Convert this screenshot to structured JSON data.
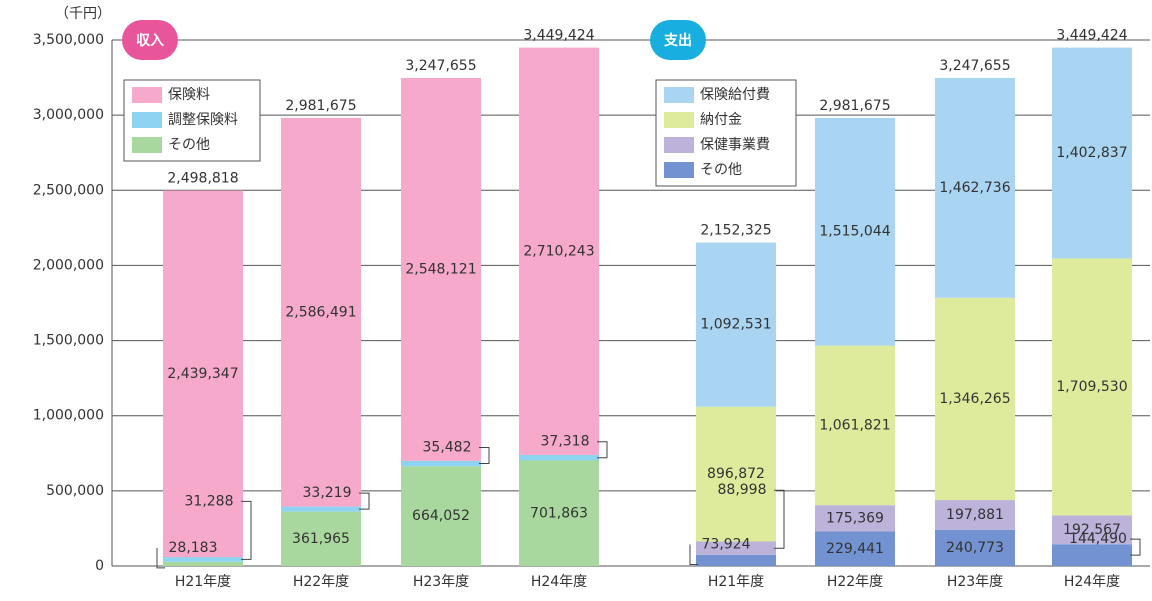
{
  "chart_data": {
    "type": "stacked-bar",
    "y_label": "（千円）",
    "ylim": [
      0,
      3500000
    ],
    "yticks": [
      0,
      {
        "value": 500000,
        "label": "500,000"
      },
      {
        "value": 1000000,
        "label": "1,000,000"
      },
      {
        "value": 1500000,
        "label": "1,500,000"
      },
      {
        "value": 2000000,
        "label": "2,000,000"
      },
      {
        "value": 2500000,
        "label": "2,500,000"
      },
      {
        "value": 3000000,
        "label": "3,000,000"
      },
      {
        "value": 3500000,
        "label": "3,500,000"
      }
    ],
    "grid": true,
    "groups": [
      {
        "title": "収入",
        "title_color": "#e8559a",
        "categories": [
          "H21年度",
          "H22年度",
          "H23年度",
          "H24年度"
        ],
        "totals": [
          2498818,
          2981675,
          3247655,
          3449424
        ],
        "total_labels": [
          "2,498,818",
          "2,981,675",
          "3,247,655",
          "3,449,424"
        ],
        "series": [
          {
            "name": "保険料",
            "color": "#f6a9ca",
            "values": [
              2439347,
              2586491,
              2548121,
              2710243
            ],
            "value_labels": [
              "2,439,347",
              "2,586,491",
              "2,548,121",
              "2,710,243"
            ]
          },
          {
            "name": "調整保険料",
            "color": "#8fd3f2",
            "values": [
              31288,
              33219,
              35482,
              37318
            ],
            "value_labels": [
              "31,288",
              "33,219",
              "35,482",
              "37,318"
            ]
          },
          {
            "name": "その他",
            "color": "#a9d89e",
            "values": [
              28183,
              361965,
              664052,
              701863
            ],
            "value_labels": [
              "28,183",
              "361,965",
              "664,052",
              "701,863"
            ]
          }
        ]
      },
      {
        "title": "支出",
        "title_color": "#19aee0",
        "categories": [
          "H21年度",
          "H22年度",
          "H23年度",
          "H24年度"
        ],
        "totals": [
          2152325,
          2981675,
          3247655,
          3449424
        ],
        "total_labels": [
          "2,152,325",
          "2,981,675",
          "3,247,655",
          "3,449,424"
        ],
        "series": [
          {
            "name": "保険給付費",
            "color": "#a9d5f2",
            "values": [
              1092531,
              1515044,
              1462736,
              1402837
            ],
            "value_labels": [
              "1,092,531",
              "1,515,044",
              "1,462,736",
              "1,402,837"
            ]
          },
          {
            "name": "納付金",
            "color": "#dfeb9c",
            "values": [
              896872,
              1061821,
              1346265,
              1709530
            ],
            "value_labels": [
              "896,872",
              "1,061,821",
              "1,346,265",
              "1,709,530"
            ]
          },
          {
            "name": "保健事業費",
            "color": "#bcb2da",
            "values": [
              88998,
              175369,
              197881,
              192567
            ],
            "value_labels": [
              "88,998",
              "175,369",
              "197,881",
              "192,567"
            ]
          },
          {
            "name": "その他",
            "color": "#7392d2",
            "values": [
              73924,
              229441,
              240773,
              144490
            ],
            "value_labels": [
              "73,924",
              "229,441",
              "240,773",
              "144,490"
            ]
          }
        ]
      }
    ]
  }
}
